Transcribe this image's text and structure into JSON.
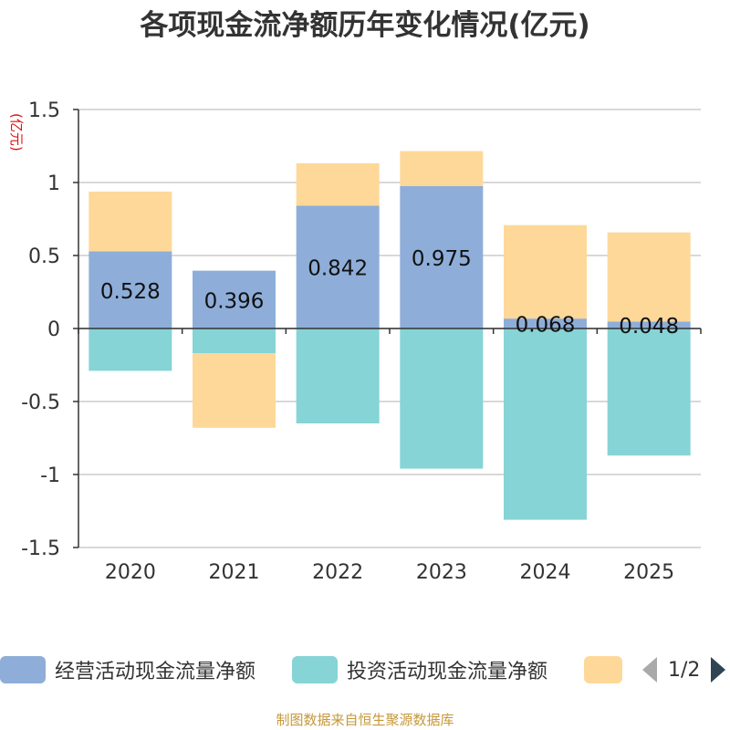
{
  "chart_data": {
    "type": "bar",
    "stacked": true,
    "title": "各项现金流净额历年变化情况(亿元)",
    "ylabel": "(亿元)",
    "ylim": [
      -1.5,
      1.5
    ],
    "yticks": [
      1.5,
      1,
      0.5,
      0,
      -0.5,
      -1,
      -1.5
    ],
    "ytick_labels": [
      "1.5",
      "1",
      "0.5",
      "0",
      "-0.5",
      "-1",
      "-1.5"
    ],
    "categories": [
      "2020",
      "2021",
      "2022",
      "2023",
      "2024",
      "2025"
    ],
    "series": [
      {
        "name": "经营活动现金流量净额",
        "color": "#8eaed9",
        "values": [
          0.528,
          0.396,
          0.842,
          0.975,
          0.068,
          0.048
        ],
        "labels": [
          "0.528",
          "0.396",
          "0.842",
          "0.975",
          "0.068",
          "0.048"
        ]
      },
      {
        "name": "投资活动现金流量净额",
        "color": "#86d4d6",
        "values": [
          -0.29,
          -0.17,
          -0.65,
          -0.96,
          -1.31,
          -0.87
        ]
      },
      {
        "name": "",
        "color": "#fed899",
        "values": [
          0.41,
          -0.51,
          0.29,
          0.24,
          0.64,
          0.61
        ]
      }
    ],
    "grid": true,
    "legend_position": "bottom"
  },
  "legend": {
    "items": [
      "经营活动现金流量净额",
      "投资活动现金流量净额",
      ""
    ],
    "page_indicator": "1/2"
  },
  "source_text": "制图数据来自恒生聚源数据库"
}
